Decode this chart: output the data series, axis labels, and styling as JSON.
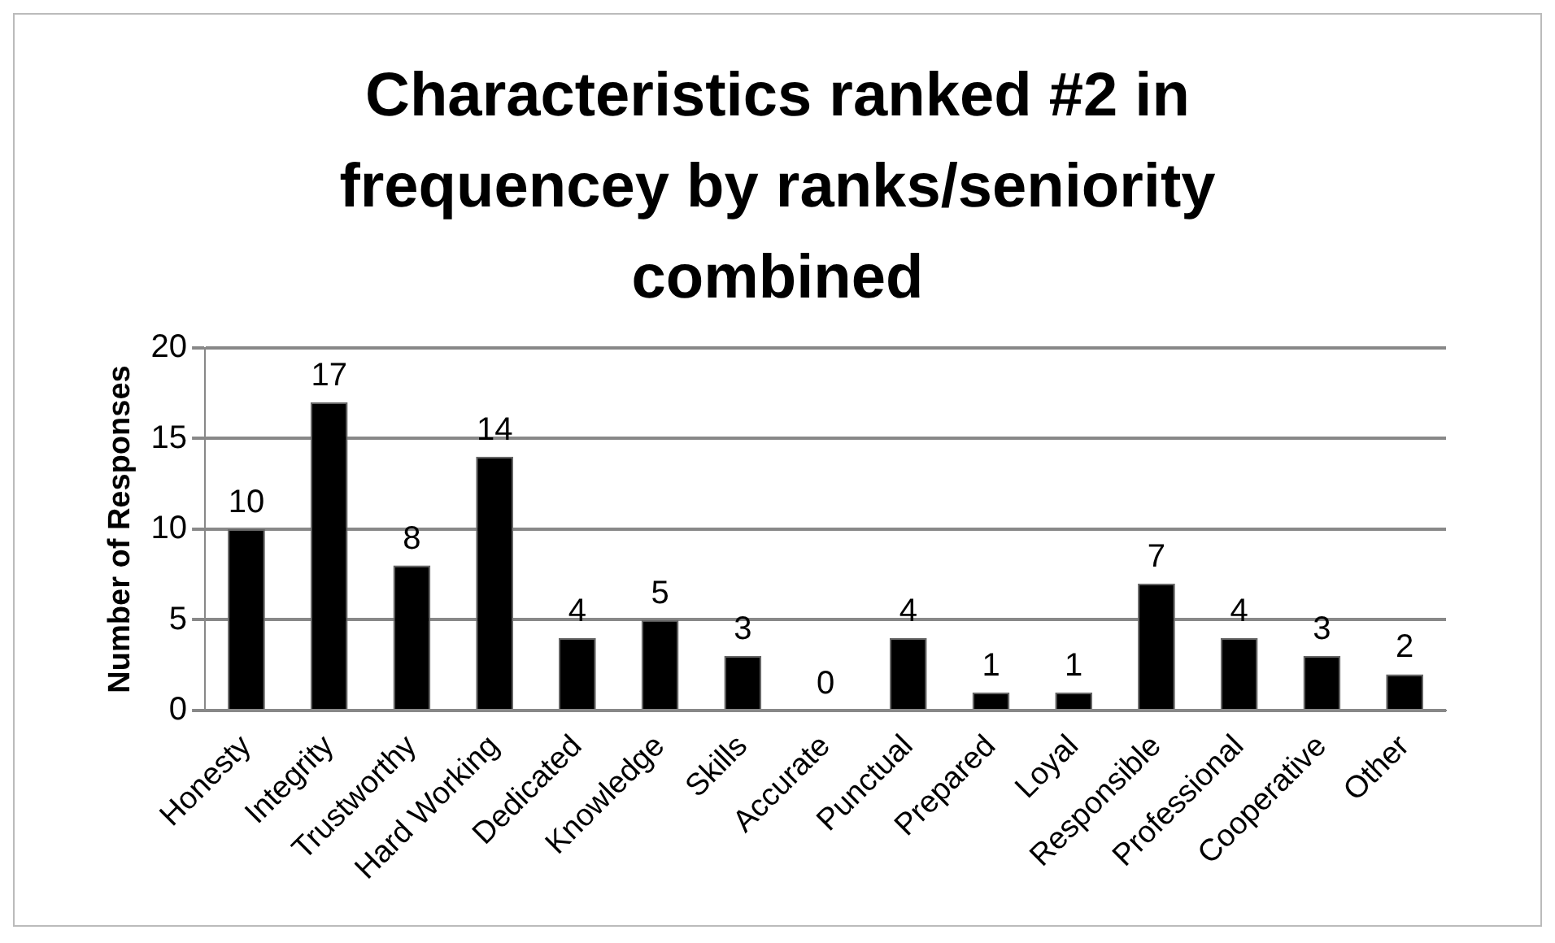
{
  "chart_data": {
    "type": "bar",
    "title": "Characteristics ranked #2 in frequencey by ranks/seniority combined",
    "ylabel": "Number of Responses",
    "categories": [
      "Honesty",
      "Integrity",
      "Trustworthy",
      "Hard Working",
      "Dedicated",
      "Knowledge",
      "Skills",
      "Accurate",
      "Punctual",
      "Prepared",
      "Loyal",
      "Responsible",
      "Professional",
      "Cooperative",
      "Other"
    ],
    "values": [
      10,
      17,
      8,
      14,
      4,
      5,
      3,
      0,
      4,
      1,
      1,
      7,
      4,
      3,
      2
    ],
    "color": "#000000",
    "ylim": [
      0,
      20
    ],
    "yticks": [
      0,
      5,
      10,
      15,
      20
    ],
    "grid": "y",
    "data_labels": true
  }
}
